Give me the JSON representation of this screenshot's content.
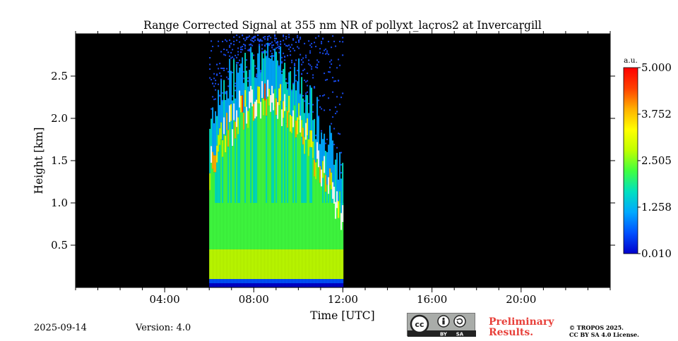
{
  "chart_data": {
    "type": "heatmap",
    "title": "Range Corrected Signal at 355 nm NR of pollyxt_lacros2 at Invercargill",
    "xlabel": "Time [UTC]",
    "ylabel": "Height [km]",
    "xlim_hours": [
      0,
      24
    ],
    "ylim_km": [
      0,
      3.0
    ],
    "x_major_ticks": [
      4,
      8,
      12,
      16,
      20
    ],
    "x_tick_labels": [
      "04:00",
      "08:00",
      "12:00",
      "16:00",
      "20:00"
    ],
    "x_minor_step_hours": 1,
    "y_ticks": [
      0.5,
      1.0,
      1.5,
      2.0,
      2.5
    ],
    "y_tick_labels": [
      "0.5",
      "1.0",
      "1.5",
      "2.0",
      "2.5"
    ],
    "data_window_hours": [
      6,
      12
    ],
    "no_data_color": "#000000",
    "colorbar": {
      "unit": "a.u.",
      "range": [
        0.01,
        5.0
      ],
      "ticks": [
        0.01,
        1.258,
        2.505,
        3.752,
        5.0
      ],
      "tick_labels": [
        "0.010",
        "1.258",
        "2.505",
        "3.752",
        "5.000"
      ],
      "colormap": [
        "#0000cc",
        "#0050ff",
        "#00a8ff",
        "#00e0c0",
        "#40ff40",
        "#c0ff00",
        "#ffff00",
        "#ffb000",
        "#ff4000",
        "#ff0000"
      ]
    }
  },
  "footer": {
    "date": "2025-09-14",
    "version": "Version: 4.0",
    "preliminary_line1": "Preliminary",
    "preliminary_line2": "Results.",
    "copyright_line1": "© TROPOS 2025.",
    "copyright_line2": "CC BY SA 4.0 License.",
    "license_badge": {
      "by": "BY",
      "sa": "SA",
      "cc": "cc"
    }
  }
}
